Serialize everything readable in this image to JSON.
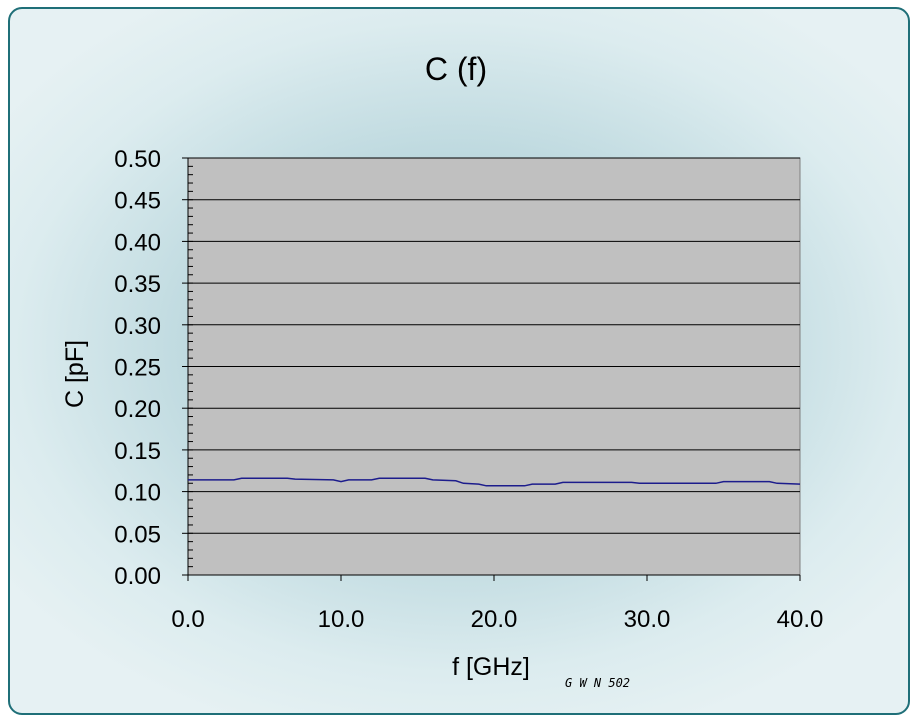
{
  "chart_data": {
    "type": "line",
    "title": "C (f)",
    "xlabel": "f [GHz]",
    "ylabel": "C [pF]",
    "annotation": "G W N 502",
    "xlim": [
      0,
      40
    ],
    "ylim": [
      0,
      0.5
    ],
    "x_ticks": [
      "0.0",
      "10.0",
      "20.0",
      "30.0",
      "40.0"
    ],
    "y_ticks": [
      "0.00",
      "0.05",
      "0.10",
      "0.15",
      "0.20",
      "0.25",
      "0.30",
      "0.35",
      "0.40",
      "0.45",
      "0.50"
    ],
    "grid": true,
    "plot_background": "#c0c0c0",
    "line_color": "#1c1c8c",
    "series": [
      {
        "x": [
          0,
          3,
          3.5,
          6.5,
          7,
          9.5,
          10,
          10.5,
          12,
          12.5,
          15.5,
          16,
          17.5,
          18,
          19,
          19.5,
          22,
          22.5,
          24,
          24.5,
          29,
          29.5,
          34.5,
          35,
          38,
          38.5,
          40
        ],
        "values": [
          0.114,
          0.114,
          0.116,
          0.116,
          0.115,
          0.114,
          0.112,
          0.114,
          0.114,
          0.116,
          0.116,
          0.114,
          0.113,
          0.11,
          0.109,
          0.107,
          0.107,
          0.109,
          0.109,
          0.111,
          0.111,
          0.11,
          0.11,
          0.112,
          0.112,
          0.11,
          0.109
        ]
      }
    ]
  }
}
